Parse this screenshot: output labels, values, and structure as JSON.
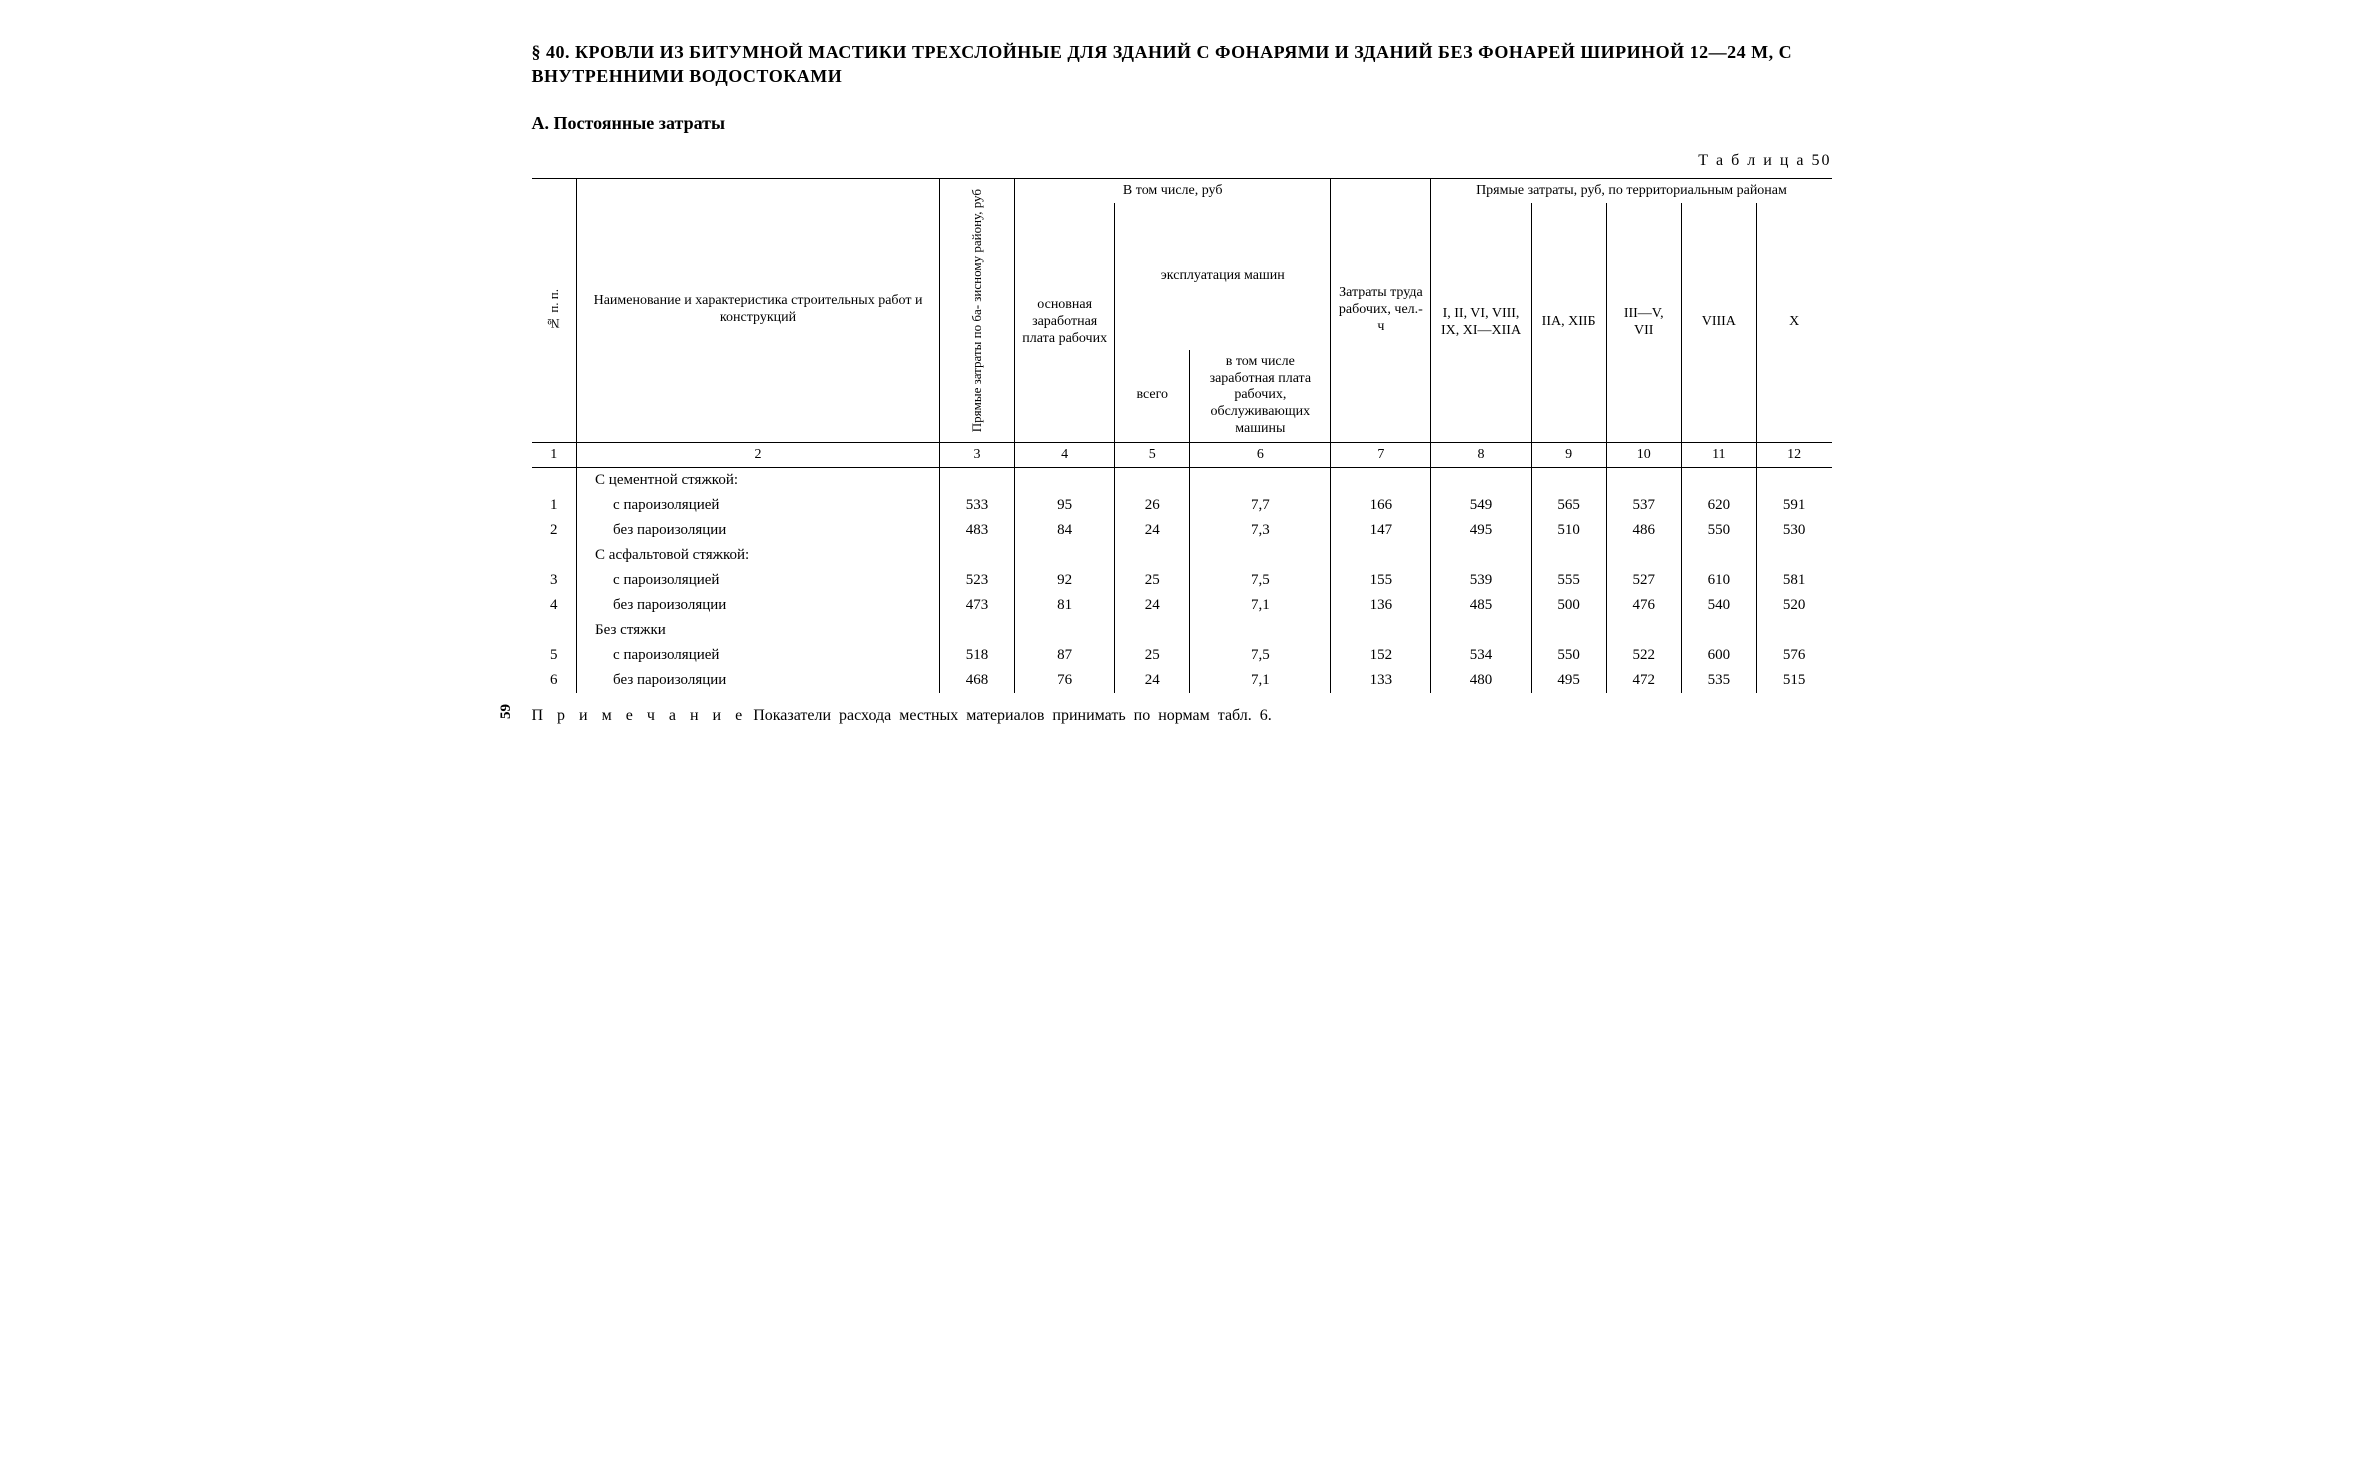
{
  "heading": "§ 40. КРОВЛИ ИЗ БИТУМНОЙ МАСТИКИ ТРЕХСЛОЙНЫЕ ДЛЯ ЗДАНИЙ С ФОНАРЯМИ И ЗДАНИЙ БЕЗ ФОНАРЕЙ ШИРИНОЙ 12—24 М, С ВНУТРЕННИМИ ВОДОСТОКАМИ",
  "subheading": "А. Постоянные затраты",
  "table_label": "Т а б л и ц а  50",
  "page_number": "59",
  "footnote_prefix": "П р и м е ч а н и е",
  "footnote_body": " Показатели расхода  местных  материалов принимать по  нормам  табл. 6.",
  "table": {
    "headers": {
      "col1_rot": "№ п. п.",
      "col2": "Наименование и характеристика строительных работ и конструкций",
      "col3_rot": "Прямые затраты по ба-\nзисному району, руб",
      "group_in_that": "В том числе, руб",
      "col4": "основная заработная плата рабочих",
      "group_machines": "эксплуатация машин",
      "col5": "всего",
      "col6": "в том числе заработная плата рабочих, обслуживающих машины",
      "col7": "Затраты труда рабочих, чел.-ч",
      "group_direct": "Прямые затраты, руб, по территориальным районам",
      "col8": "I, II, VI, VIII, IX, XI—XIIА",
      "col9": "IIА, XIIБ",
      "col10": "III—V, VII",
      "col11": "VIIIА",
      "col12": "X"
    },
    "col_numbers": [
      "1",
      "2",
      "3",
      "4",
      "5",
      "6",
      "7",
      "8",
      "9",
      "10",
      "11",
      "12"
    ],
    "groups": [
      {
        "title": "С цементной стяжкой:"
      },
      {
        "title": "С асфальтовой стяжкой:"
      },
      {
        "title": "Без стяжки"
      }
    ],
    "rows": [
      {
        "n": "1",
        "label": "с пароизоляцией",
        "v": [
          "533",
          "95",
          "26",
          "7,7",
          "166",
          "549",
          "565",
          "537",
          "620",
          "591"
        ]
      },
      {
        "n": "2",
        "label": "без пароизоляции",
        "v": [
          "483",
          "84",
          "24",
          "7,3",
          "147",
          "495",
          "510",
          "486",
          "550",
          "530"
        ]
      },
      {
        "n": "3",
        "label": "с пароизоляцией",
        "v": [
          "523",
          "92",
          "25",
          "7,5",
          "155",
          "539",
          "555",
          "527",
          "610",
          "581"
        ]
      },
      {
        "n": "4",
        "label": "без пароизоляции",
        "v": [
          "473",
          "81",
          "24",
          "7,1",
          "136",
          "485",
          "500",
          "476",
          "540",
          "520"
        ]
      },
      {
        "n": "5",
        "label": "с пароизоляцией",
        "v": [
          "518",
          "87",
          "25",
          "7,5",
          "152",
          "534",
          "550",
          "522",
          "600",
          "576"
        ]
      },
      {
        "n": "6",
        "label": "без пароизоляции",
        "v": [
          "468",
          "76",
          "24",
          "7,1",
          "133",
          "480",
          "495",
          "472",
          "535",
          "515"
        ]
      }
    ]
  }
}
